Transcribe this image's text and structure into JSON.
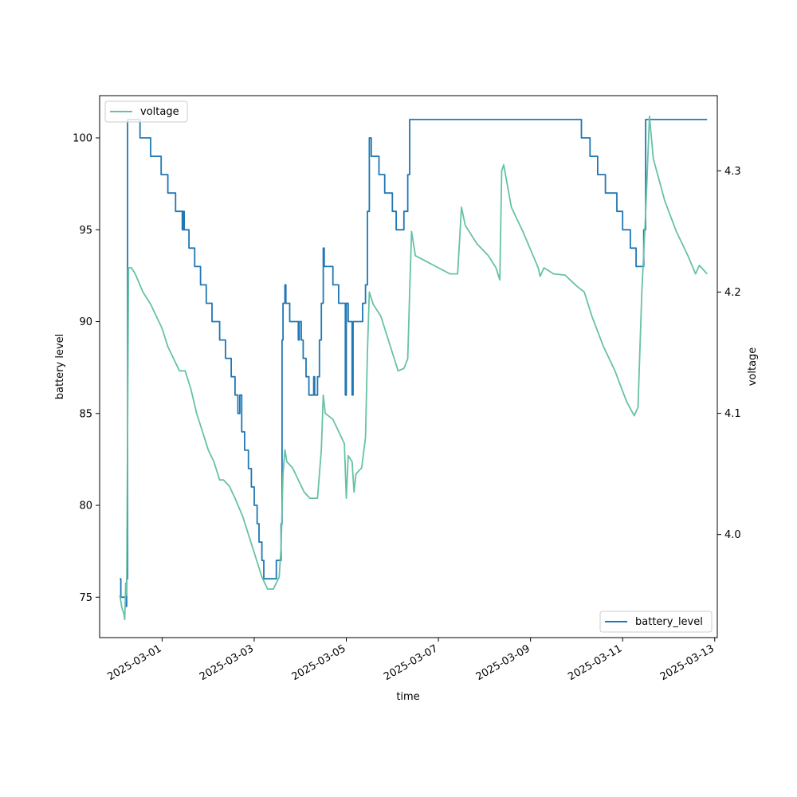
{
  "chart_data": {
    "type": "line",
    "xlabel": "time",
    "ylabel_left": "battery level",
    "ylabel_right": "voltage",
    "x_ticks": [
      "2025-03-01",
      "2025-03-03",
      "2025-03-05",
      "2025-03-07",
      "2025-03-09",
      "2025-03-11",
      "2025-03-13"
    ],
    "x_range": [
      "2025-02-27T15:26",
      "2025-03-13T01:20"
    ],
    "y_left_range": [
      72.8,
      102.3
    ],
    "y_left_ticks": [
      75,
      80,
      85,
      90,
      95,
      100
    ],
    "y_right_range": [
      3.915,
      4.362
    ],
    "y_right_ticks": [
      4.0,
      4.1,
      4.2,
      4.3
    ],
    "grid": false,
    "legend_left_placement": "upper-left",
    "legend_right_placement": "lower-right",
    "series": [
      {
        "name": "battery_level",
        "axis": "left",
        "color": "#1f77b4",
        "step": true,
        "points": [
          [
            "2025-02-28T02:00",
            76
          ],
          [
            "2025-02-28T02:30",
            75
          ],
          [
            "2025-02-28T05:00",
            74.5
          ],
          [
            "2025-02-28T05:30",
            76
          ],
          [
            "2025-02-28T06:00",
            101
          ],
          [
            "2025-02-28T11:30",
            101
          ],
          [
            "2025-02-28T12:30",
            100
          ],
          [
            "2025-02-28T18:00",
            99
          ],
          [
            "2025-02-28T23:30",
            98
          ],
          [
            "2025-03-01T03:00",
            97
          ],
          [
            "2025-03-01T07:00",
            96
          ],
          [
            "2025-03-01T10:30",
            95
          ],
          [
            "2025-03-01T11:00",
            96
          ],
          [
            "2025-03-01T11:30",
            95
          ],
          [
            "2025-03-01T14:00",
            94
          ],
          [
            "2025-03-01T17:00",
            93
          ],
          [
            "2025-03-01T20:00",
            92
          ],
          [
            "2025-03-01T23:00",
            91
          ],
          [
            "2025-03-02T02:00",
            90
          ],
          [
            "2025-03-02T06:00",
            89
          ],
          [
            "2025-03-02T09:00",
            88
          ],
          [
            "2025-03-02T12:00",
            87
          ],
          [
            "2025-03-02T14:00",
            86
          ],
          [
            "2025-03-02T15:30",
            85
          ],
          [
            "2025-03-02T16:30",
            86
          ],
          [
            "2025-03-02T17:30",
            84
          ],
          [
            "2025-03-02T19:00",
            83
          ],
          [
            "2025-03-02T21:00",
            82
          ],
          [
            "2025-03-02T22:30",
            81
          ],
          [
            "2025-03-03T00:00",
            80
          ],
          [
            "2025-03-03T01:30",
            79
          ],
          [
            "2025-03-03T02:30",
            78
          ],
          [
            "2025-03-03T04:00",
            77
          ],
          [
            "2025-03-03T05:00",
            76
          ],
          [
            "2025-03-03T11:30",
            77
          ],
          [
            "2025-03-03T14:00",
            79
          ],
          [
            "2025-03-03T14:30",
            89
          ],
          [
            "2025-03-03T15:00",
            91
          ],
          [
            "2025-03-03T16:00",
            92
          ],
          [
            "2025-03-03T16:30",
            91
          ],
          [
            "2025-03-03T18:30",
            90
          ],
          [
            "2025-03-03T23:00",
            89
          ],
          [
            "2025-03-03T23:30",
            90
          ],
          [
            "2025-03-04T00:30",
            89
          ],
          [
            "2025-03-04T01:30",
            88
          ],
          [
            "2025-03-04T03:00",
            87
          ],
          [
            "2025-03-04T04:30",
            86
          ],
          [
            "2025-03-04T07:00",
            87
          ],
          [
            "2025-03-04T07:30",
            86
          ],
          [
            "2025-03-04T09:00",
            87
          ],
          [
            "2025-03-04T10:00",
            89
          ],
          [
            "2025-03-04T11:00",
            91
          ],
          [
            "2025-03-04T12:00",
            94
          ],
          [
            "2025-03-04T12:30",
            93
          ],
          [
            "2025-03-04T17:00",
            92
          ],
          [
            "2025-03-04T20:00",
            91
          ],
          [
            "2025-03-04T23:30",
            86
          ],
          [
            "2025-03-05T00:00",
            91
          ],
          [
            "2025-03-05T01:00",
            90
          ],
          [
            "2025-03-05T03:00",
            86
          ],
          [
            "2025-03-05T03:30",
            90
          ],
          [
            "2025-03-05T08:30",
            91
          ],
          [
            "2025-03-05T10:00",
            92
          ],
          [
            "2025-03-05T11:00",
            96
          ],
          [
            "2025-03-05T12:00",
            100
          ],
          [
            "2025-03-05T13:00",
            99
          ],
          [
            "2025-03-05T17:00",
            98
          ],
          [
            "2025-03-05T20:00",
            97
          ],
          [
            "2025-03-06T00:00",
            96
          ],
          [
            "2025-03-06T02:00",
            95
          ],
          [
            "2025-03-06T06:00",
            96
          ],
          [
            "2025-03-06T08:00",
            98
          ],
          [
            "2025-03-06T09:00",
            101
          ],
          [
            "2025-03-10T02:00",
            101
          ],
          [
            "2025-03-10T02:30",
            100
          ],
          [
            "2025-03-10T07:00",
            99
          ],
          [
            "2025-03-10T11:00",
            98
          ],
          [
            "2025-03-10T15:00",
            97
          ],
          [
            "2025-03-10T21:00",
            96
          ],
          [
            "2025-03-11T00:00",
            95
          ],
          [
            "2025-03-11T04:00",
            94
          ],
          [
            "2025-03-11T07:00",
            93
          ],
          [
            "2025-03-11T11:00",
            95
          ],
          [
            "2025-03-11T12:00",
            101
          ],
          [
            "2025-03-12T20:00",
            101
          ]
        ]
      },
      {
        "name": "voltage",
        "axis": "right",
        "color": "#66c2a5",
        "step": false,
        "points": [
          [
            "2025-02-28T02:00",
            3.95
          ],
          [
            "2025-02-28T03:00",
            3.94
          ],
          [
            "2025-02-28T04:00",
            3.935
          ],
          [
            "2025-02-28T04:30",
            3.93
          ],
          [
            "2025-02-28T05:00",
            3.96
          ],
          [
            "2025-02-28T05:30",
            3.95
          ],
          [
            "2025-02-28T06:30",
            4.22
          ],
          [
            "2025-02-28T08:00",
            4.22
          ],
          [
            "2025-02-28T10:00",
            4.215
          ],
          [
            "2025-02-28T14:00",
            4.2
          ],
          [
            "2025-02-28T18:00",
            4.19
          ],
          [
            "2025-02-28T21:00",
            4.18
          ],
          [
            "2025-03-01T00:00",
            4.17
          ],
          [
            "2025-03-01T03:00",
            4.155
          ],
          [
            "2025-03-01T06:00",
            4.145
          ],
          [
            "2025-03-01T09:00",
            4.135
          ],
          [
            "2025-03-01T12:00",
            4.135
          ],
          [
            "2025-03-01T15:00",
            4.12
          ],
          [
            "2025-03-01T18:00",
            4.1
          ],
          [
            "2025-03-01T21:00",
            4.085
          ],
          [
            "2025-03-02T00:00",
            4.07
          ],
          [
            "2025-03-02T03:00",
            4.06
          ],
          [
            "2025-03-02T06:00",
            4.045
          ],
          [
            "2025-03-02T08:00",
            4.045
          ],
          [
            "2025-03-02T11:00",
            4.04
          ],
          [
            "2025-03-02T14:00",
            4.03
          ],
          [
            "2025-03-02T18:00",
            4.015
          ],
          [
            "2025-03-02T22:00",
            3.995
          ],
          [
            "2025-03-03T01:00",
            3.98
          ],
          [
            "2025-03-03T04:00",
            3.965
          ],
          [
            "2025-03-03T07:00",
            3.955
          ],
          [
            "2025-03-03T10:00",
            3.955
          ],
          [
            "2025-03-03T13:00",
            3.965
          ],
          [
            "2025-03-03T14:00",
            3.99
          ],
          [
            "2025-03-03T15:00",
            4.05
          ],
          [
            "2025-03-03T16:00",
            4.07
          ],
          [
            "2025-03-03T17:00",
            4.06
          ],
          [
            "2025-03-03T20:00",
            4.055
          ],
          [
            "2025-03-03T23:00",
            4.045
          ],
          [
            "2025-03-04T02:00",
            4.035
          ],
          [
            "2025-03-04T05:00",
            4.03
          ],
          [
            "2025-03-04T09:00",
            4.03
          ],
          [
            "2025-03-04T10:00",
            4.05
          ],
          [
            "2025-03-04T11:00",
            4.07
          ],
          [
            "2025-03-04T12:00",
            4.115
          ],
          [
            "2025-03-04T13:00",
            4.1
          ],
          [
            "2025-03-04T17:00",
            4.095
          ],
          [
            "2025-03-04T20:00",
            4.085
          ],
          [
            "2025-03-04T23:00",
            4.075
          ],
          [
            "2025-03-05T00:00",
            4.03
          ],
          [
            "2025-03-05T01:00",
            4.065
          ],
          [
            "2025-03-05T03:00",
            4.06
          ],
          [
            "2025-03-05T04:00",
            4.035
          ],
          [
            "2025-03-05T05:00",
            4.05
          ],
          [
            "2025-03-05T08:00",
            4.055
          ],
          [
            "2025-03-05T10:00",
            4.08
          ],
          [
            "2025-03-05T11:00",
            4.15
          ],
          [
            "2025-03-05T12:00",
            4.2
          ],
          [
            "2025-03-05T14:00",
            4.19
          ],
          [
            "2025-03-05T18:00",
            4.18
          ],
          [
            "2025-03-05T22:00",
            4.16
          ],
          [
            "2025-03-06T01:00",
            4.145
          ],
          [
            "2025-03-06T03:00",
            4.135
          ],
          [
            "2025-03-06T06:00",
            4.137
          ],
          [
            "2025-03-06T08:00",
            4.145
          ],
          [
            "2025-03-06T09:00",
            4.2
          ],
          [
            "2025-03-06T10:00",
            4.25
          ],
          [
            "2025-03-06T12:00",
            4.23
          ],
          [
            "2025-03-06T18:00",
            4.225
          ],
          [
            "2025-03-07T00:00",
            4.22
          ],
          [
            "2025-03-07T06:00",
            4.215
          ],
          [
            "2025-03-07T10:00",
            4.215
          ],
          [
            "2025-03-07T12:00",
            4.27
          ],
          [
            "2025-03-07T14:00",
            4.255
          ],
          [
            "2025-03-07T20:00",
            4.24
          ],
          [
            "2025-03-08T02:00",
            4.23
          ],
          [
            "2025-03-08T06:00",
            4.22
          ],
          [
            "2025-03-08T08:00",
            4.21
          ],
          [
            "2025-03-08T09:00",
            4.3
          ],
          [
            "2025-03-08T10:00",
            4.305
          ],
          [
            "2025-03-08T14:00",
            4.27
          ],
          [
            "2025-03-08T20:00",
            4.25
          ],
          [
            "2025-03-09T00:00",
            4.235
          ],
          [
            "2025-03-09T04:00",
            4.22
          ],
          [
            "2025-03-09T05:00",
            4.213
          ],
          [
            "2025-03-09T07:00",
            4.22
          ],
          [
            "2025-03-09T12:00",
            4.215
          ],
          [
            "2025-03-09T18:00",
            4.214
          ],
          [
            "2025-03-10T00:00",
            4.205
          ],
          [
            "2025-03-10T04:00",
            4.2
          ],
          [
            "2025-03-10T08:00",
            4.18
          ],
          [
            "2025-03-10T14:00",
            4.155
          ],
          [
            "2025-03-10T20:00",
            4.135
          ],
          [
            "2025-03-11T02:00",
            4.11
          ],
          [
            "2025-03-11T06:00",
            4.098
          ],
          [
            "2025-03-11T08:00",
            4.105
          ],
          [
            "2025-03-11T10:00",
            4.2
          ],
          [
            "2025-03-11T12:00",
            4.265
          ],
          [
            "2025-03-11T14:00",
            4.345
          ],
          [
            "2025-03-11T16:00",
            4.31
          ],
          [
            "2025-03-11T22:00",
            4.275
          ],
          [
            "2025-03-12T04:00",
            4.25
          ],
          [
            "2025-03-12T10:00",
            4.23
          ],
          [
            "2025-03-12T14:00",
            4.215
          ],
          [
            "2025-03-12T16:00",
            4.222
          ],
          [
            "2025-03-12T20:00",
            4.215
          ]
        ]
      }
    ]
  }
}
